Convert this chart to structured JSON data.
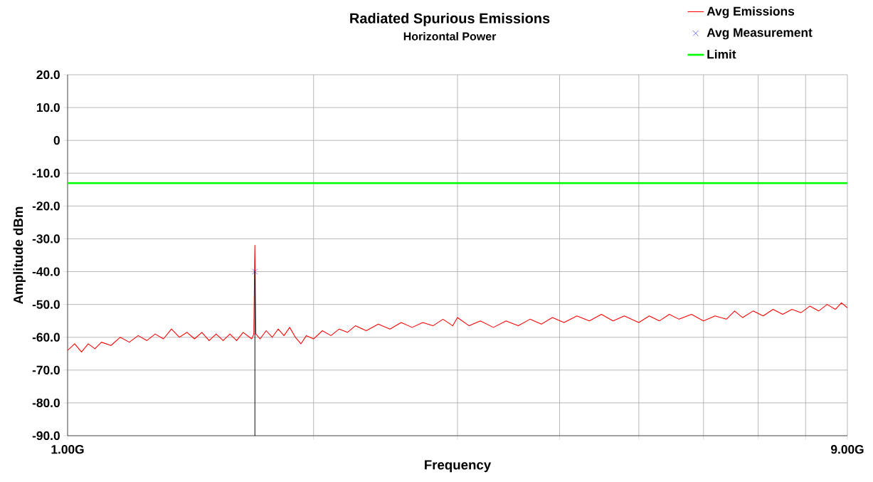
{
  "chart_data": {
    "type": "line",
    "title": "Radiated Spurious Emissions",
    "subtitle": "Horizontal Power",
    "xlabel": "Frequency",
    "ylabel": "Amplitude dBm",
    "log": "x",
    "grid": true,
    "legend": "top right",
    "xlim": [
      1,
      9
    ],
    "ylim": [
      -90,
      20
    ],
    "xticks": [
      {
        "value": 1,
        "label": "1.00G"
      },
      {
        "value": 2,
        "label": null
      },
      {
        "value": 3,
        "label": null
      },
      {
        "value": 4,
        "label": null
      },
      {
        "value": 5,
        "label": null
      },
      {
        "value": 6,
        "label": null
      },
      {
        "value": 7,
        "label": null
      },
      {
        "value": 8,
        "label": null
      },
      {
        "value": 9,
        "label": "9.00G"
      }
    ],
    "yticks": [
      {
        "value": 20,
        "label": "20.0"
      },
      {
        "value": 10,
        "label": "10.0"
      },
      0,
      {
        "value": -10,
        "label": "-10.0"
      },
      {
        "value": -20,
        "label": "-20.0"
      },
      {
        "value": -30,
        "label": "-30.0"
      },
      {
        "value": -40,
        "label": "-40.0"
      },
      {
        "value": -50,
        "label": "-50.0"
      },
      {
        "value": -60,
        "label": "-60.0"
      },
      {
        "value": -70,
        "label": "-70.0"
      },
      {
        "value": -80,
        "label": "-80.0"
      },
      {
        "value": -90,
        "label": "-90.0"
      }
    ],
    "series": [
      {
        "name": "Avg Emissions",
        "color": "#ff0000",
        "x": [
          1.0,
          1.02,
          1.04,
          1.06,
          1.08,
          1.1,
          1.13,
          1.16,
          1.19,
          1.22,
          1.25,
          1.28,
          1.31,
          1.34,
          1.37,
          1.4,
          1.43,
          1.46,
          1.49,
          1.52,
          1.55,
          1.58,
          1.61,
          1.64,
          1.68,
          1.69,
          1.695,
          1.7,
          1.72,
          1.75,
          1.78,
          1.81,
          1.84,
          1.87,
          1.9,
          1.93,
          1.96,
          2.0,
          2.05,
          2.1,
          2.15,
          2.2,
          2.25,
          2.32,
          2.4,
          2.48,
          2.56,
          2.64,
          2.72,
          2.8,
          2.88,
          2.96,
          3.0,
          3.1,
          3.2,
          3.32,
          3.44,
          3.56,
          3.68,
          3.8,
          3.92,
          4.05,
          4.2,
          4.35,
          4.5,
          4.65,
          4.8,
          5.0,
          5.15,
          5.3,
          5.45,
          5.6,
          5.8,
          6.0,
          6.2,
          6.4,
          6.55,
          6.7,
          6.9,
          7.1,
          7.3,
          7.5,
          7.7,
          7.9,
          8.1,
          8.3,
          8.5,
          8.7,
          8.85,
          9.0
        ],
        "values": [
          -64,
          -62,
          -64.5,
          -62,
          -63.5,
          -61.5,
          -62.5,
          -60,
          -61.5,
          -59.5,
          -61,
          -59,
          -60.5,
          -57.5,
          -60,
          -58.5,
          -60.5,
          -58.5,
          -61,
          -59,
          -61,
          -59,
          -61,
          -58.5,
          -60.5,
          -59,
          -32,
          -59,
          -60.5,
          -58,
          -60,
          -57.5,
          -59.5,
          -57,
          -60,
          -62,
          -59.5,
          -60.5,
          -58,
          -59.5,
          -57.5,
          -58.5,
          -56.5,
          -58,
          -56,
          -57.5,
          -55.5,
          -57,
          -55.5,
          -56.5,
          -54.5,
          -56.5,
          -54,
          -56.5,
          -55,
          -57,
          -55,
          -56.5,
          -54.5,
          -56,
          -54,
          -55.5,
          -53.5,
          -55,
          -53,
          -55,
          -53.5,
          -55.5,
          -53.5,
          -55,
          -53,
          -54.5,
          -53,
          -55,
          -53.5,
          -54.5,
          -52,
          -54,
          -52,
          -53.5,
          -51.5,
          -53,
          -51.5,
          -52.5,
          -50.5,
          -52,
          -50,
          -51.5,
          -49.5,
          -51
        ]
      },
      {
        "name": "Avg Measurement",
        "type": "scatter",
        "marker": "cross",
        "color": "#0000ff",
        "x": [
          1.695
        ],
        "values": [
          -40
        ],
        "errors": [
          [
            -90,
            -40
          ]
        ]
      }
    ],
    "ref_lines": [
      {
        "axis": "y",
        "value": -13,
        "label": "Limit",
        "color": "#00ff00"
      }
    ]
  }
}
